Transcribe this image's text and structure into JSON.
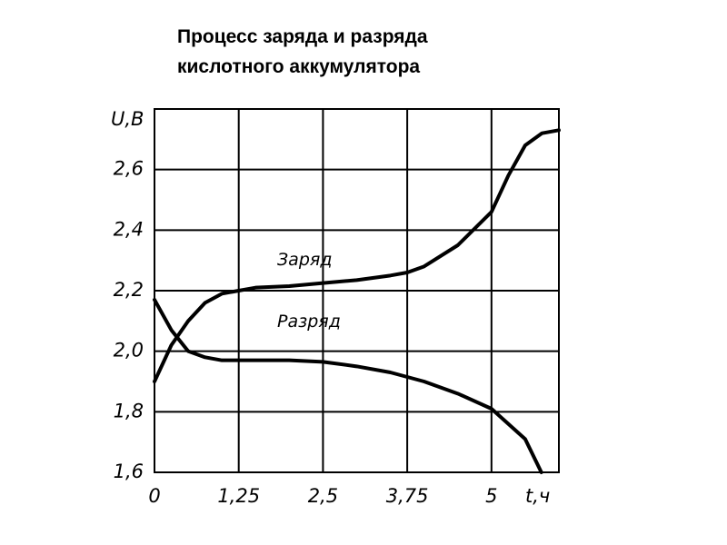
{
  "chart_data": {
    "type": "line",
    "title": [
      "Процесс заряда и разряда",
      "кислотного аккумулятора"
    ],
    "ylabel": "U,В",
    "xlabel": "t,ч",
    "xlim": [
      0,
      6
    ],
    "ylim": [
      1.6,
      2.8
    ],
    "xticks": [
      {
        "value": 0,
        "label": "0"
      },
      {
        "value": 1.25,
        "label": "1,25"
      },
      {
        "value": 2.5,
        "label": "2,5"
      },
      {
        "value": 3.75,
        "label": "3,75"
      },
      {
        "value": 5,
        "label": "5"
      }
    ],
    "yticks": [
      {
        "value": 1.6,
        "label": "1,6"
      },
      {
        "value": 1.8,
        "label": "1,8"
      },
      {
        "value": 2.0,
        "label": "2,0"
      },
      {
        "value": 2.2,
        "label": "2,2"
      },
      {
        "value": 2.4,
        "label": "2,4"
      },
      {
        "value": 2.6,
        "label": "2,6"
      }
    ],
    "grid": true,
    "series": [
      {
        "name": "Заряд",
        "color": "#000000",
        "x": [
          0,
          0.25,
          0.5,
          0.75,
          1.0,
          1.25,
          1.5,
          2.0,
          2.5,
          3.0,
          3.5,
          3.75,
          4.0,
          4.5,
          5.0,
          5.25,
          5.5,
          5.75,
          6.0
        ],
        "values": [
          1.9,
          2.02,
          2.1,
          2.16,
          2.19,
          2.2,
          2.21,
          2.215,
          2.225,
          2.235,
          2.25,
          2.26,
          2.28,
          2.35,
          2.46,
          2.58,
          2.68,
          2.72,
          2.73
        ]
      },
      {
        "name": "Разряд",
        "color": "#000000",
        "x": [
          0,
          0.25,
          0.5,
          0.75,
          1.0,
          1.25,
          2.0,
          2.5,
          3.0,
          3.5,
          4.0,
          4.5,
          5.0,
          5.5,
          5.74
        ],
        "values": [
          2.17,
          2.07,
          2.0,
          1.98,
          1.97,
          1.97,
          1.97,
          1.965,
          1.95,
          1.93,
          1.9,
          1.86,
          1.81,
          1.71,
          1.6
        ]
      }
    ]
  }
}
